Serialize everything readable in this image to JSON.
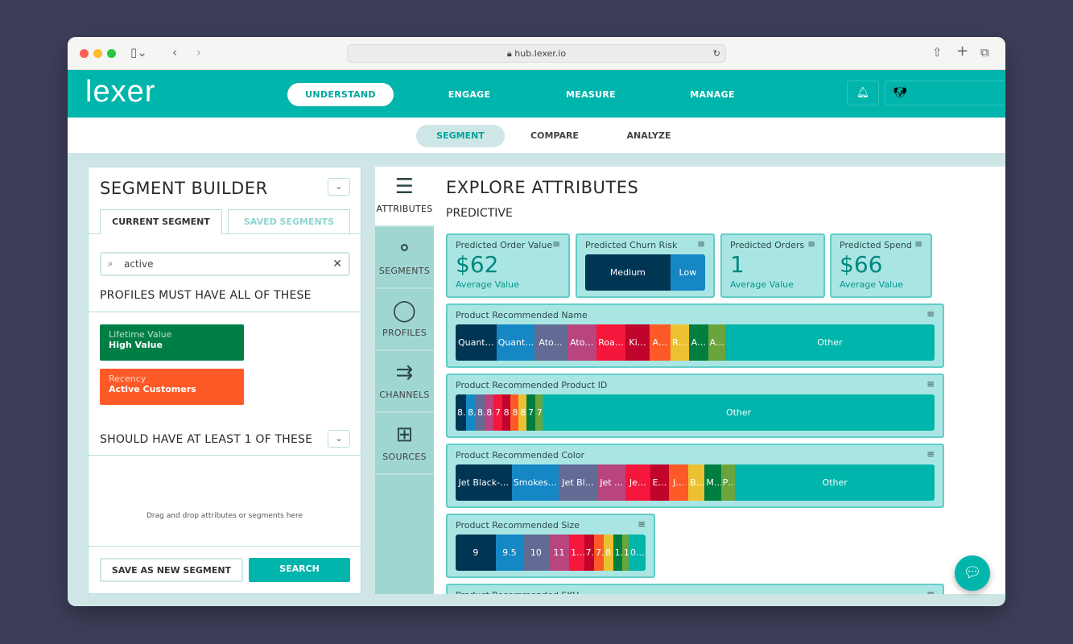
{
  "browser": {
    "url": "hub.lexer.io"
  },
  "header": {
    "logo": "lexer",
    "nav": [
      {
        "label": "UNDERSTAND",
        "active": true
      },
      {
        "label": "ENGAGE"
      },
      {
        "label": "MEASURE"
      },
      {
        "label": "MANAGE"
      }
    ]
  },
  "subnav": [
    {
      "label": "SEGMENT",
      "active": true
    },
    {
      "label": "COMPARE"
    },
    {
      "label": "ANALYZE"
    }
  ],
  "builder": {
    "title": "SEGMENT BUILDER",
    "tabs": [
      "CURRENT SEGMENT",
      "SAVED SEGMENTS"
    ],
    "search_value": "active",
    "must_title": "PROFILES MUST HAVE ALL OF THESE",
    "chips": [
      {
        "key": "Lifetime Value",
        "value": "High Value",
        "color": "#007e45"
      },
      {
        "key": "Recency",
        "value": "Active Customers",
        "color": "#fd5a27"
      }
    ],
    "should_title": "SHOULD HAVE AT LEAST 1 OF THESE",
    "drop_hint": "Drag and drop attributes or segments here",
    "save_label": "SAVE AS NEW SEGMENT",
    "search_label": "SEARCH"
  },
  "sidetabs": [
    {
      "label": "ATTRIBUTES",
      "icon": "list-icon"
    },
    {
      "label": "SEGMENTS",
      "icon": "segments-icon"
    },
    {
      "label": "PROFILES",
      "icon": "person-icon"
    },
    {
      "label": "CHANNELS",
      "icon": "channels-icon"
    },
    {
      "label": "SOURCES",
      "icon": "sources-icon"
    }
  ],
  "main": {
    "title": "EXPLORE ATTRIBUTES",
    "subtitle": "PREDICTIVE",
    "stats": [
      {
        "title": "Predicted Order Value",
        "value": "$62",
        "sub": "Average Value"
      },
      {
        "title": "Predicted Orders",
        "value": "1",
        "sub": "Average Value"
      },
      {
        "title": "Predicted Spend",
        "value": "$66",
        "sub": "Average Value"
      }
    ],
    "churn": {
      "title": "Predicted Churn Risk",
      "segments": [
        {
          "label": "Medium",
          "share": 71,
          "color": "#003554"
        },
        {
          "label": "Low",
          "share": 29,
          "color": "#1587c4"
        }
      ]
    },
    "palette": [
      "#003554",
      "#1587c4",
      "#636b95",
      "#b9457f",
      "#f5163c",
      "#c0042b",
      "#fd5a27",
      "#ecc131",
      "#007e3f",
      "#69a53c",
      "#00b5ac"
    ],
    "bars": [
      {
        "title": "Product Recommended Name",
        "labels": [
          "Quant…",
          "Quant…",
          "Ato…",
          "Ato…",
          "Roa…",
          "Ki…",
          "A…",
          "R…",
          "A…",
          "A…",
          "Other"
        ],
        "shares": [
          8.5,
          7.9,
          6.9,
          6.1,
          6.1,
          5.0,
          4.3,
          4.0,
          3.9,
          3.6,
          43.7
        ]
      },
      {
        "title": "Product Recommended Product ID",
        "labels": [
          "8.",
          "8.",
          "8.",
          "8.",
          "7",
          "8",
          "8",
          "8",
          "7",
          "7",
          "Other"
        ],
        "shares": [
          2.2,
          2.0,
          1.9,
          1.8,
          1.8,
          1.8,
          1.7,
          1.6,
          1.8,
          1.6,
          81.8
        ]
      },
      {
        "title": "Product Recommended Color",
        "labels": [
          "Jet Black-…",
          "Smokes…",
          "Jet Bl…",
          "Jet …",
          "Je…",
          "E…",
          "J…",
          "B…",
          "M…",
          "P…",
          "Other"
        ],
        "shares": [
          11.7,
          9.8,
          8.1,
          5.9,
          5.1,
          4.0,
          4.0,
          3.4,
          3.4,
          3.0,
          41.6
        ]
      },
      {
        "title": "Product Recommended Size",
        "labels": [
          "9",
          "9.5",
          "10",
          "11",
          "1…",
          "7.",
          "7.",
          "8.",
          "1.",
          "1",
          "0…"
        ],
        "shares": [
          21.1,
          14.5,
          13.5,
          10.7,
          7.8,
          5.3,
          5.1,
          4.9,
          4.8,
          3.4,
          8.9
        ]
      },
      {
        "title": "Product Recommended SKU"
      }
    ]
  }
}
